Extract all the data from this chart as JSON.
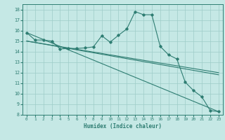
{
  "xlabel": "Humidex (Indice chaleur)",
  "xlim": [
    -0.5,
    23.5
  ],
  "ylim": [
    8,
    18.5
  ],
  "yticks": [
    8,
    9,
    10,
    11,
    12,
    13,
    14,
    15,
    16,
    17,
    18
  ],
  "xticks": [
    0,
    1,
    2,
    3,
    4,
    5,
    6,
    7,
    8,
    9,
    10,
    11,
    12,
    13,
    14,
    15,
    16,
    17,
    18,
    19,
    20,
    21,
    22,
    23
  ],
  "bg_color": "#c5e8e5",
  "grid_color": "#9eccc8",
  "line_color": "#2e7d72",
  "line1_x": [
    0,
    1,
    2,
    3,
    4,
    5,
    6,
    7,
    8,
    9,
    10,
    11,
    12,
    13,
    14,
    15,
    16,
    17,
    18,
    19,
    20,
    21,
    22,
    23
  ],
  "line1_y": [
    15.8,
    15.1,
    15.1,
    15.0,
    14.25,
    14.3,
    14.3,
    14.35,
    14.45,
    15.5,
    14.9,
    15.55,
    16.15,
    17.8,
    17.5,
    17.5,
    14.5,
    13.7,
    13.3,
    11.1,
    10.3,
    9.7,
    8.4,
    8.3
  ],
  "line2_x": [
    0,
    23
  ],
  "line2_y": [
    15.8,
    8.3
  ],
  "line3_x": [
    0,
    23
  ],
  "line3_y": [
    15.0,
    12.0
  ],
  "line4_x": [
    0,
    23
  ],
  "line4_y": [
    15.0,
    11.8
  ]
}
